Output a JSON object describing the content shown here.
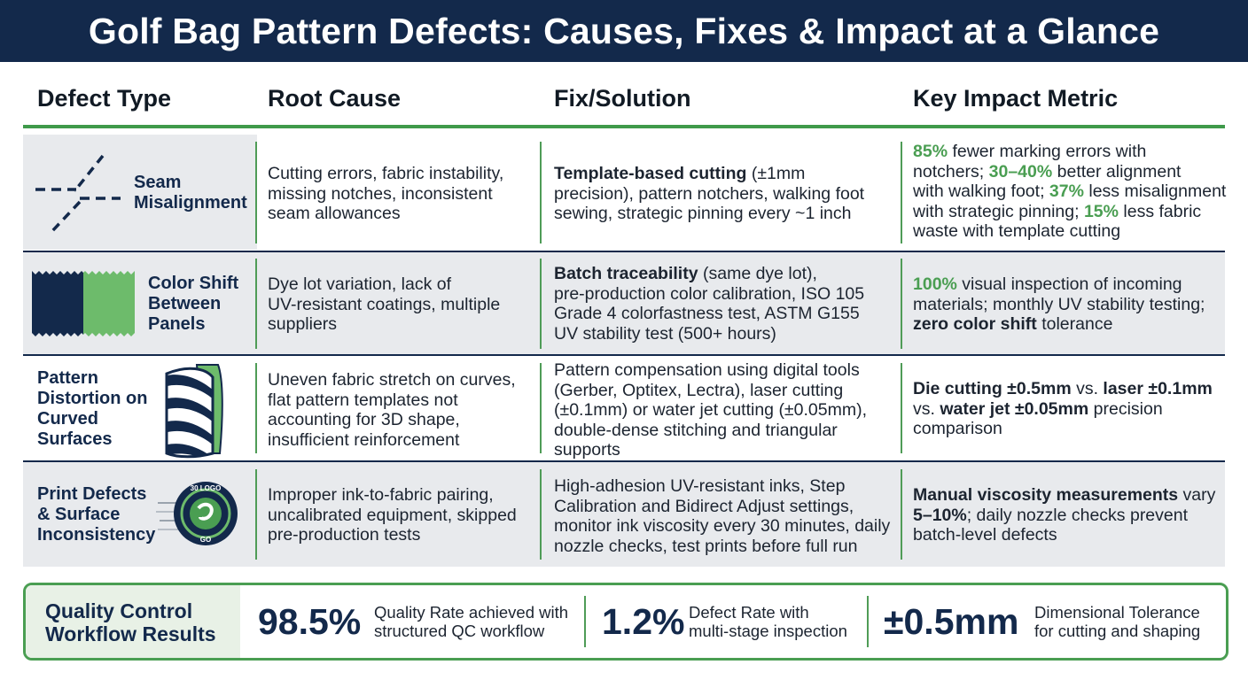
{
  "title": "Golf Bag Pattern Defects: Causes, Fixes & Impact at a Glance",
  "headers": [
    "Defect Type",
    "Root Cause",
    "Fix/Solution",
    "Key Impact Metric"
  ],
  "rows": [
    {
      "defect_1": "Seam",
      "defect_2": "Misalignment",
      "cause_1": "Cutting errors, fabric instability,",
      "cause_2": "missing notches, inconsistent",
      "cause_3": "seam allowances",
      "fix_1a": "Template-based cutting",
      "fix_1b": " (±1mm",
      "fix_2": "precision), pattern notchers, walking foot",
      "fix_3": "sewing, strategic pinning every ~1 inch",
      "impact_1a": "85%",
      "impact_1b": " fewer marking errors with",
      "impact_2a": "notchers; ",
      "impact_2b": "30–40%",
      "impact_2c": " better alignment",
      "impact_3a": "with walking foot; ",
      "impact_3b": "37%",
      "impact_3c": " less misalignment",
      "impact_4a": "with strategic pinning; ",
      "impact_4b": "15%",
      "impact_4c": " less fabric",
      "impact_5": "waste with template cutting"
    },
    {
      "defect_1": "Color Shift",
      "defect_2": "Between",
      "defect_3": "Panels",
      "cause_1": "Dye lot variation, lack of",
      "cause_2": "UV-resistant coatings, multiple",
      "cause_3": "suppliers",
      "fix_1a": "Batch traceability",
      "fix_1b": " (same dye lot),",
      "fix_2": "pre-production color calibration, ISO 105",
      "fix_3": "Grade 4 colorfastness test, ASTM G155",
      "fix_4": "UV stability test (500+ hours)",
      "impact_1a": "100%",
      "impact_1b": " visual inspection of incoming",
      "impact_2": "materials; monthly UV stability testing;",
      "impact_3a": "zero color shift",
      "impact_3b": " tolerance"
    },
    {
      "defect_1": "Pattern",
      "defect_2": "Distortion on",
      "defect_3": "Curved",
      "defect_4": "Surfaces",
      "cause_1": "Uneven fabric stretch on curves,",
      "cause_2": "flat pattern templates not",
      "cause_3": "accounting for 3D shape,",
      "cause_4": "insufficient reinforcement",
      "fix_1": "Pattern compensation using digital tools",
      "fix_2": "(Gerber, Optitex, Lectra), laser cutting",
      "fix_3": "(±0.1mm) or water jet cutting (±0.05mm),",
      "fix_4": "double-dense stitching and triangular",
      "fix_5": "supports",
      "impact_1a": "Die cutting ±0.5mm",
      "impact_1b": " vs. ",
      "impact_1c": "laser ±0.1mm",
      "impact_2a": "vs. ",
      "impact_2b": "water jet ±0.05mm",
      "impact_2c": " precision",
      "impact_3": "comparison"
    },
    {
      "defect_1": "Print Defects",
      "defect_2": "& Surface",
      "defect_3": "Inconsistency",
      "logo_top": "30 LOGO",
      "logo_bottom": "GO",
      "cause_1": "Improper ink-to-fabric pairing,",
      "cause_2": "uncalibrated equipment, skipped",
      "cause_3": "pre-production tests",
      "fix_1": "High-adhesion UV-resistant inks, Step",
      "fix_2": "Calibration and Bidirect Adjust settings,",
      "fix_3": "monitor ink viscosity every 30 minutes, daily",
      "fix_4": "nozzle checks, test prints before full run",
      "impact_1a": "Manual viscosity measurements",
      "impact_1b": " vary",
      "impact_2a": "5–10%",
      "impact_2b": "; daily nozzle checks prevent",
      "impact_3": "batch-level defects"
    }
  ],
  "qc": {
    "label_1": "Quality Control",
    "label_2": "Workflow Results",
    "stats": [
      {
        "value": "98.5%",
        "desc_1": "Quality Rate achieved with",
        "desc_2": "structured QC workflow"
      },
      {
        "value": "1.2%",
        "desc_1": "Defect Rate with",
        "desc_2": "multi-stage inspection"
      },
      {
        "value": "±0.5mm",
        "desc_1": "Dimensional Tolerance",
        "desc_2": "for cutting and shaping"
      }
    ]
  },
  "colors": {
    "navy": "#13294b",
    "green": "#4a9e52",
    "light_green": "#6dbb6b",
    "row_shade": "#e8eaed"
  },
  "icons": [
    "seam-misalignment-icon",
    "color-swatch-icon",
    "striped-golf-bag-icon",
    "print-logo-icon"
  ]
}
